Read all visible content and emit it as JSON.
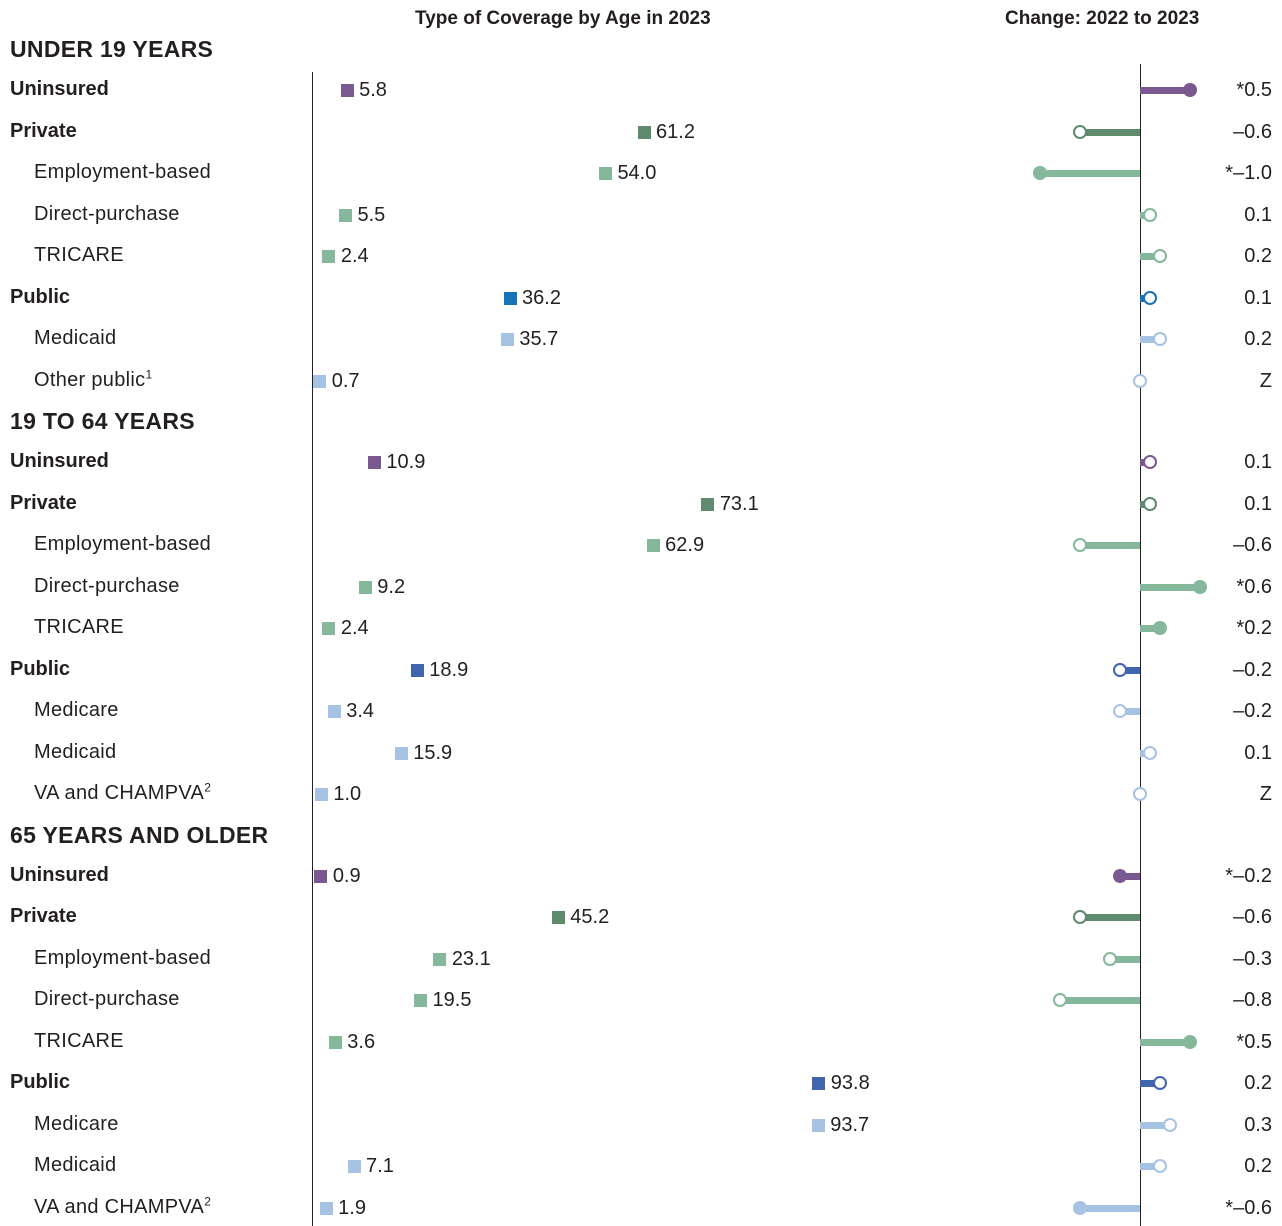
{
  "headers": {
    "left": "Type of Coverage by Age in 2023",
    "right": "Change: 2022 to 2023"
  },
  "colors": {
    "uninsured": "#7a5990",
    "private": "#5e8a6d",
    "private_sub": "#85b89a",
    "public": "#4164ae",
    "public_sub": "#a7c3e4",
    "public_under19": "#1673b8"
  },
  "chart_data": {
    "type": "dot-bar",
    "x_scale_left": [
      0,
      100
    ],
    "groups": [
      {
        "label": "UNDER 19 YEARS",
        "rows": [
          {
            "label": "Uninsured",
            "level": "main",
            "cat": "uninsured",
            "value": 5.8,
            "value_label": "5.8",
            "change": 0.5,
            "change_label": "*0.5",
            "significant": true
          },
          {
            "label": "Private",
            "level": "main",
            "cat": "private",
            "value": 61.2,
            "value_label": "61.2",
            "change": -0.6,
            "change_label": "–0.6",
            "significant": false
          },
          {
            "label": "Employment-based",
            "level": "sub",
            "cat": "private_sub",
            "value": 54.0,
            "value_label": "54.0",
            "change": -1.0,
            "change_label": "*–1.0",
            "significant": true
          },
          {
            "label": "Direct-purchase",
            "level": "sub",
            "cat": "private_sub",
            "value": 5.5,
            "value_label": "5.5",
            "change": 0.1,
            "change_label": "0.1",
            "significant": false
          },
          {
            "label": "TRICARE",
            "level": "sub",
            "cat": "private_sub",
            "value": 2.4,
            "value_label": "2.4",
            "change": 0.2,
            "change_label": "0.2",
            "significant": false
          },
          {
            "label": "Public",
            "level": "main",
            "cat": "public_under19",
            "value": 36.2,
            "value_label": "36.2",
            "change": 0.1,
            "change_label": "0.1",
            "significant": false
          },
          {
            "label": "Medicaid",
            "level": "sub",
            "cat": "public_sub",
            "value": 35.7,
            "value_label": "35.7",
            "change": 0.2,
            "change_label": "0.2",
            "significant": false
          },
          {
            "label": "Other public",
            "sup": "1",
            "level": "sub",
            "cat": "public_sub",
            "value": 0.7,
            "value_label": "0.7",
            "change": 0.0,
            "change_label": "Z",
            "significant": false
          }
        ]
      },
      {
        "label": "19 TO 64 YEARS",
        "rows": [
          {
            "label": "Uninsured",
            "level": "main",
            "cat": "uninsured",
            "value": 10.9,
            "value_label": "10.9",
            "change": 0.1,
            "change_label": "0.1",
            "significant": false
          },
          {
            "label": "Private",
            "level": "main",
            "cat": "private",
            "value": 73.1,
            "value_label": "73.1",
            "change": 0.1,
            "change_label": "0.1",
            "significant": false
          },
          {
            "label": "Employment-based",
            "level": "sub",
            "cat": "private_sub",
            "value": 62.9,
            "value_label": "62.9",
            "change": -0.6,
            "change_label": "–0.6",
            "significant": false
          },
          {
            "label": "Direct-purchase",
            "level": "sub",
            "cat": "private_sub",
            "value": 9.2,
            "value_label": "9.2",
            "change": 0.6,
            "change_label": "*0.6",
            "significant": true
          },
          {
            "label": "TRICARE",
            "level": "sub",
            "cat": "private_sub",
            "value": 2.4,
            "value_label": "2.4",
            "change": 0.2,
            "change_label": "*0.2",
            "significant": true
          },
          {
            "label": "Public",
            "level": "main",
            "cat": "public",
            "value": 18.9,
            "value_label": "18.9",
            "change": -0.2,
            "change_label": "–0.2",
            "significant": false
          },
          {
            "label": "Medicare",
            "level": "sub",
            "cat": "public_sub",
            "value": 3.4,
            "value_label": "3.4",
            "change": -0.2,
            "change_label": "–0.2",
            "significant": false
          },
          {
            "label": "Medicaid",
            "level": "sub",
            "cat": "public_sub",
            "value": 15.9,
            "value_label": "15.9",
            "change": 0.1,
            "change_label": "0.1",
            "significant": false
          },
          {
            "label": "VA and CHAMPVA",
            "sup": "2",
            "level": "sub",
            "cat": "public_sub",
            "value": 1.0,
            "value_label": "1.0",
            "change": 0.0,
            "change_label": "Z",
            "significant": false
          }
        ]
      },
      {
        "label": "65 YEARS AND OLDER",
        "rows": [
          {
            "label": "Uninsured",
            "level": "main",
            "cat": "uninsured",
            "value": 0.9,
            "value_label": "0.9",
            "change": -0.2,
            "change_label": "*–0.2",
            "significant": true
          },
          {
            "label": "Private",
            "level": "main",
            "cat": "private",
            "value": 45.2,
            "value_label": "45.2",
            "change": -0.6,
            "change_label": "–0.6",
            "significant": false
          },
          {
            "label": "Employment-based",
            "level": "sub",
            "cat": "private_sub",
            "value": 23.1,
            "value_label": "23.1",
            "change": -0.3,
            "change_label": "–0.3",
            "significant": false
          },
          {
            "label": "Direct-purchase",
            "level": "sub",
            "cat": "private_sub",
            "value": 19.5,
            "value_label": "19.5",
            "change": -0.8,
            "change_label": "–0.8",
            "significant": false
          },
          {
            "label": "TRICARE",
            "level": "sub",
            "cat": "private_sub",
            "value": 3.6,
            "value_label": "3.6",
            "change": 0.5,
            "change_label": "*0.5",
            "significant": true
          },
          {
            "label": "Public",
            "level": "main",
            "cat": "public",
            "value": 93.8,
            "value_label": "93.8",
            "change": 0.2,
            "change_label": "0.2",
            "significant": false
          },
          {
            "label": "Medicare",
            "level": "sub",
            "cat": "public_sub",
            "value": 93.7,
            "value_label": "93.7",
            "change": 0.3,
            "change_label": "0.3",
            "significant": false
          },
          {
            "label": "Medicaid",
            "level": "sub",
            "cat": "public_sub",
            "value": 7.1,
            "value_label": "7.1",
            "change": 0.2,
            "change_label": "0.2",
            "significant": false
          },
          {
            "label": "VA and CHAMPVA",
            "sup": "2",
            "level": "sub",
            "cat": "public_sub",
            "value": 1.9,
            "value_label": "1.9",
            "change": -0.6,
            "change_label": "*–0.6",
            "significant": true
          }
        ]
      }
    ]
  }
}
